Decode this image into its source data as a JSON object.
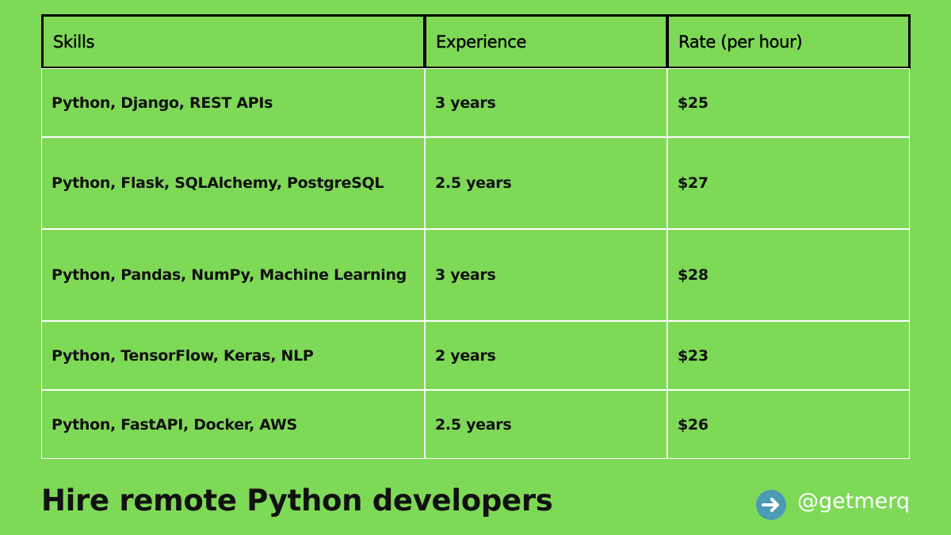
{
  "table": {
    "header": [
      "Skills",
      "Experience",
      "Rate (per hour)"
    ],
    "rows": [
      [
        "Python, Django, REST APIs",
        "3 years",
        "$25"
      ],
      [
        "Python, Flask, SQLAlchemy, PostgreSQL",
        "2.5 years",
        "$27"
      ],
      [
        "Python, Pandas, NumPy, Machine Learning",
        "3 years",
        "$28"
      ],
      [
        "Python, TensorFlow, Keras, NLP",
        "2 years",
        "$23"
      ],
      [
        "Python, FastAPI, Docker, AWS",
        "2.5 years",
        "$26"
      ]
    ]
  },
  "footer": {
    "title": "Hire remote Python developers",
    "handle": "@getmerq"
  }
}
